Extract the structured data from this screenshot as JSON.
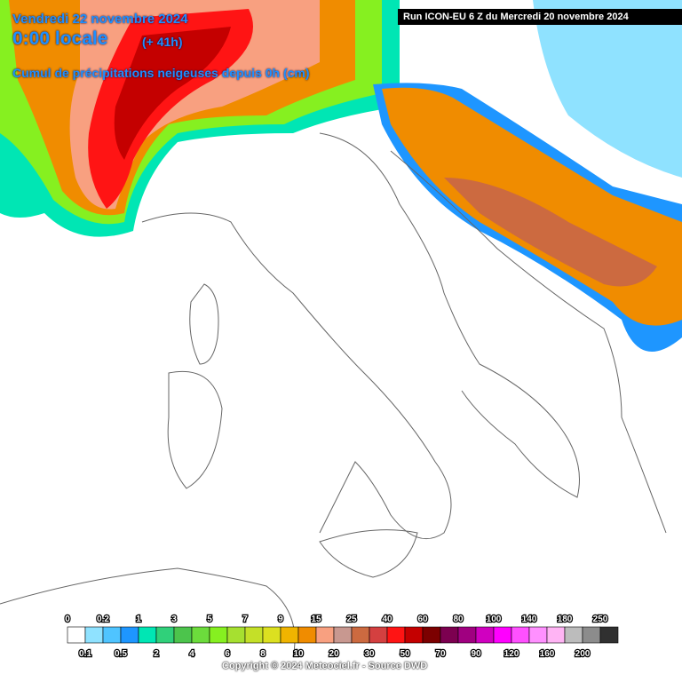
{
  "header": {
    "date": "Vendredi 22 novembre 2024",
    "time": "0:00 locale",
    "lead": "(+ 41h)",
    "subtitle": "Cumul de précipitations neigeuses depuis 0h (cm)",
    "run": "Run ICON-EU 6 Z du Mercredi 20 novembre 2024"
  },
  "legend": {
    "boundaries": [
      0,
      0.1,
      0.2,
      0.5,
      1,
      2,
      3,
      4,
      5,
      6,
      7,
      8,
      9,
      10,
      15,
      20,
      25,
      30,
      40,
      50,
      60,
      70,
      80,
      90,
      100,
      120,
      140,
      160,
      180,
      200,
      250
    ],
    "colors": [
      "#ffffff",
      "#8fe2ff",
      "#4fc4ff",
      "#1e96ff",
      "#00e6b4",
      "#30d07a",
      "#4cc44c",
      "#6cdc3c",
      "#86f020",
      "#a6e030",
      "#c4e028",
      "#dce020",
      "#f0b400",
      "#f08c00",
      "#f8a080",
      "#c89890",
      "#cc6a40",
      "#d44040",
      "#ff1414",
      "#c40000",
      "#7c0000",
      "#7c0050",
      "#a00080",
      "#d000c0",
      "#ff00ff",
      "#ff50ff",
      "#ff90ff",
      "#ffb4f4",
      "#bcbcbc",
      "#8c8c8c",
      "#303030"
    ]
  },
  "footer": {
    "copyright": "Copyright © 2024 Meteociel.fr - Source DWD"
  }
}
